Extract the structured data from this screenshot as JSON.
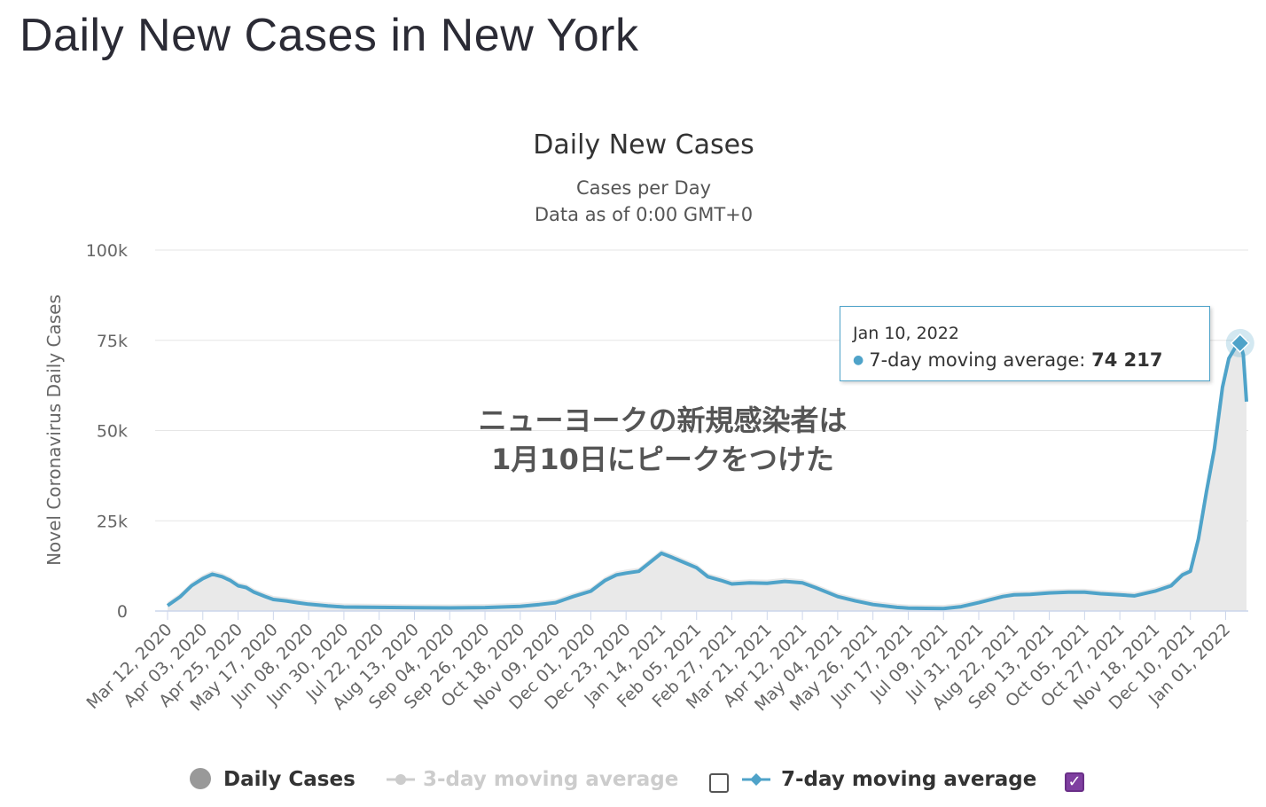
{
  "page": {
    "heading": "Daily New Cases in New York"
  },
  "chart_data": {
    "type": "line",
    "title": "Daily New Cases",
    "subtitle_lines": [
      "Cases per Day",
      "Data as of 0:00 GMT+0"
    ],
    "ylabel": "Novel Coronavirus Daily Cases",
    "xlabel": "",
    "ylim": [
      0,
      100000
    ],
    "y_ticks": [
      0,
      25000,
      50000,
      75000,
      100000
    ],
    "y_tick_labels": [
      "0",
      "25k",
      "50k",
      "75k",
      "100k"
    ],
    "x_tick_labels": [
      "Mar 12, 2020",
      "Apr 03, 2020",
      "Apr 25, 2020",
      "May 17, 2020",
      "Jun 08, 2020",
      "Jun 30, 2020",
      "Jul 22, 2020",
      "Aug 13, 2020",
      "Sep 04, 2020",
      "Sep 26, 2020",
      "Oct 18, 2020",
      "Nov 09, 2020",
      "Dec 01, 2020",
      "Dec 23, 2020",
      "Jan 14, 2021",
      "Feb 05, 2021",
      "Feb 27, 2021",
      "Mar 21, 2021",
      "Apr 12, 2021",
      "May 04, 2021",
      "May 26, 2021",
      "Jun 17, 2021",
      "Jul 09, 2021",
      "Jul 31, 2021",
      "Aug 22, 2021",
      "Sep 13, 2021",
      "Oct 05, 2021",
      "Oct 27, 2021",
      "Nov 18, 2021",
      "Dec 10, 2021",
      "Jan 01, 2022"
    ],
    "grid": true,
    "legend_position": "bottom",
    "series": [
      {
        "name": "7-day moving average",
        "color": "#4fa3c9",
        "points": [
          [
            "Mar 12, 2020",
            1500
          ],
          [
            "Mar 20, 2020",
            4000
          ],
          [
            "Mar 27, 2020",
            7000
          ],
          [
            "Apr 03, 2020",
            9000
          ],
          [
            "Apr 09, 2020",
            10200
          ],
          [
            "Apr 15, 2020",
            9500
          ],
          [
            "Apr 20, 2020",
            8500
          ],
          [
            "Apr 25, 2020",
            7000
          ],
          [
            "Apr 30, 2020",
            6500
          ],
          [
            "May 05, 2020",
            5200
          ],
          [
            "May 12, 2020",
            4000
          ],
          [
            "May 17, 2020",
            3200
          ],
          [
            "May 25, 2020",
            2800
          ],
          [
            "Jun 01, 2020",
            2300
          ],
          [
            "Jun 08, 2020",
            1900
          ],
          [
            "Jun 20, 2020",
            1400
          ],
          [
            "Jun 30, 2020",
            1100
          ],
          [
            "Jul 22, 2020",
            1000
          ],
          [
            "Aug 13, 2020",
            900
          ],
          [
            "Sep 04, 2020",
            850
          ],
          [
            "Sep 26, 2020",
            950
          ],
          [
            "Oct 18, 2020",
            1300
          ],
          [
            "Oct 30, 2020",
            1800
          ],
          [
            "Nov 09, 2020",
            2300
          ],
          [
            "Nov 20, 2020",
            4000
          ],
          [
            "Dec 01, 2020",
            5500
          ],
          [
            "Dec 10, 2020",
            8500
          ],
          [
            "Dec 17, 2020",
            10000
          ],
          [
            "Dec 23, 2020",
            10500
          ],
          [
            "Dec 31, 2020",
            11000
          ],
          [
            "Jan 07, 2021",
            13500
          ],
          [
            "Jan 14, 2021",
            16000
          ],
          [
            "Jan 20, 2021",
            15000
          ],
          [
            "Jan 28, 2021",
            13500
          ],
          [
            "Feb 05, 2021",
            12000
          ],
          [
            "Feb 12, 2021",
            9500
          ],
          [
            "Feb 20, 2021",
            8500
          ],
          [
            "Feb 27, 2021",
            7500
          ],
          [
            "Mar 10, 2021",
            7800
          ],
          [
            "Mar 21, 2021",
            7700
          ],
          [
            "Apr 01, 2021",
            8200
          ],
          [
            "Apr 12, 2021",
            7800
          ],
          [
            "Apr 20, 2021",
            6500
          ],
          [
            "May 04, 2021",
            4000
          ],
          [
            "May 15, 2021",
            2800
          ],
          [
            "May 26, 2021",
            1800
          ],
          [
            "Jun 10, 2021",
            1000
          ],
          [
            "Jun 17, 2021",
            800
          ],
          [
            "Jul 09, 2021",
            700
          ],
          [
            "Jul 20, 2021",
            1200
          ],
          [
            "Jul 31, 2021",
            2300
          ],
          [
            "Aug 15, 2021",
            4000
          ],
          [
            "Aug 22, 2021",
            4500
          ],
          [
            "Sep 01, 2021",
            4600
          ],
          [
            "Sep 13, 2021",
            5000
          ],
          [
            "Sep 25, 2021",
            5200
          ],
          [
            "Oct 05, 2021",
            5200
          ],
          [
            "Oct 15, 2021",
            4800
          ],
          [
            "Oct 27, 2021",
            4500
          ],
          [
            "Nov 05, 2021",
            4200
          ],
          [
            "Nov 18, 2021",
            5500
          ],
          [
            "Nov 28, 2021",
            7000
          ],
          [
            "Dec 05, 2021",
            10000
          ],
          [
            "Dec 10, 2021",
            11000
          ],
          [
            "Dec 15, 2021",
            20000
          ],
          [
            "Dec 20, 2021",
            33000
          ],
          [
            "Dec 25, 2021",
            45000
          ],
          [
            "Dec 30, 2021",
            62000
          ],
          [
            "Jan 03, 2022",
            70000
          ],
          [
            "Jan 07, 2022",
            73000
          ],
          [
            "Jan 10, 2022",
            74217
          ],
          [
            "Jan 12, 2022",
            71000
          ],
          [
            "Jan 14, 2022",
            58000
          ]
        ]
      }
    ],
    "highlighted_point": {
      "date": "Jan 10, 2022",
      "series": "7-day moving average",
      "value_label": "74 217"
    },
    "annotation": [
      "ニューヨークの新規感染者は",
      "1月10日にピークをつけた"
    ],
    "legend": [
      {
        "label": "Daily Cases",
        "enabled": true,
        "marker": "circle",
        "color": "#999999"
      },
      {
        "label": "3-day moving average",
        "enabled": false,
        "marker": "circle-line",
        "color": "#cccccc"
      },
      {
        "label": "7-day moving average",
        "enabled": true,
        "marker": "diamond-line",
        "color": "#4fa3c9"
      }
    ]
  },
  "tooltip": {
    "date": "Jan 10, 2022",
    "series_label": "7-day moving average:",
    "value": "74 217"
  }
}
